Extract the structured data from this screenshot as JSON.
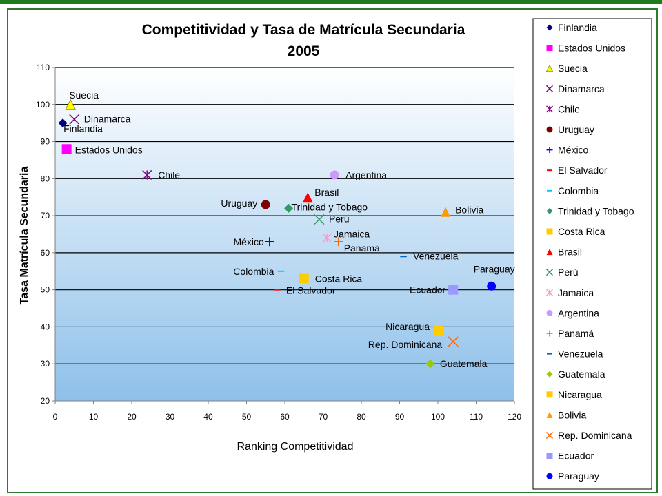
{
  "chart_data": {
    "type": "scatter",
    "title": [
      "Competitividad y Tasa de Matrícula Secundaria",
      "2005"
    ],
    "xlabel": "Ranking Competitividad",
    "ylabel": "Tasa Matrícula Secundaria",
    "xlim": [
      0,
      120
    ],
    "ylim": [
      20,
      110
    ],
    "xticks": [
      0,
      10,
      20,
      30,
      40,
      50,
      60,
      70,
      80,
      90,
      100,
      110,
      120
    ],
    "yticks": [
      20,
      30,
      40,
      50,
      60,
      70,
      80,
      90,
      100,
      110
    ],
    "grid": "horizontal",
    "legend_position": "right",
    "series": [
      {
        "name": "Finlandia",
        "x": 2,
        "y": 95,
        "marker": "diamond",
        "color": "#000080",
        "label": "Finlandia"
      },
      {
        "name": "Estados Unidos",
        "x": 3,
        "y": 88,
        "marker": "square",
        "color": "#ff00ff",
        "label": "Estados Unidos"
      },
      {
        "name": "Suecia",
        "x": 4,
        "y": 100,
        "marker": "triangle",
        "color": "#ffff00",
        "label": "Suecia"
      },
      {
        "name": "Dinamarca",
        "x": 5,
        "y": 96,
        "marker": "x",
        "color": "#800080",
        "label": "Dinamarca"
      },
      {
        "name": "Chile",
        "x": 24,
        "y": 81,
        "marker": "star",
        "color": "#800080",
        "label": "Chile"
      },
      {
        "name": "Uruguay",
        "x": 55,
        "y": 73,
        "marker": "circle",
        "color": "#800000",
        "label": "Uruguay"
      },
      {
        "name": "México",
        "x": 56,
        "y": 63,
        "marker": "plus",
        "color": "#0000ff",
        "label": "México"
      },
      {
        "name": "El Salvador",
        "x": 58,
        "y": 50,
        "marker": "dash",
        "color": "#ff0000",
        "label": "El Salvador"
      },
      {
        "name": "Colombia",
        "x": 59,
        "y": 55,
        "marker": "dash",
        "color": "#00ccff",
        "label": "Colombia"
      },
      {
        "name": "Trinidad y Tobago",
        "x": 61,
        "y": 72,
        "marker": "diamond",
        "color": "#339966",
        "label": "Trinidad y Tobago"
      },
      {
        "name": "Costa Rica",
        "x": 65,
        "y": 53,
        "marker": "square",
        "color": "#ffcc00",
        "label": "Costa Rica"
      },
      {
        "name": "Brasil",
        "x": 66,
        "y": 75,
        "marker": "triangle",
        "color": "#ff0000",
        "label": "Brasil"
      },
      {
        "name": "Perú",
        "x": 69,
        "y": 69,
        "marker": "x",
        "color": "#339966",
        "label": "Perú"
      },
      {
        "name": "Jamaica",
        "x": 71,
        "y": 64,
        "marker": "star",
        "color": "#ff99cc",
        "label": "Jamaica"
      },
      {
        "name": "Argentina",
        "x": 73,
        "y": 81,
        "marker": "circle",
        "color": "#cc99ff",
        "label": "Argentina"
      },
      {
        "name": "Panamá",
        "x": 74,
        "y": 63,
        "marker": "plus",
        "color": "#ff6600",
        "label": "Panamá"
      },
      {
        "name": "Venezuela",
        "x": 91,
        "y": 59,
        "marker": "dash",
        "color": "#0066cc",
        "label": "Venezuela"
      },
      {
        "name": "Guatemala",
        "x": 98,
        "y": 30,
        "marker": "diamond",
        "color": "#99cc00",
        "label": "Guatemala"
      },
      {
        "name": "Nicaragua",
        "x": 100,
        "y": 39,
        "marker": "square",
        "color": "#ffcc00",
        "label": "Nicaragua"
      },
      {
        "name": "Bolivia",
        "x": 102,
        "y": 71,
        "marker": "triangle",
        "color": "#ff9900",
        "label": "Bolivia"
      },
      {
        "name": "Rep. Dominicana",
        "x": 104,
        "y": 36,
        "marker": "x",
        "color": "#ff6600",
        "label": "Rep. Dominicana"
      },
      {
        "name": "Ecuador",
        "x": 104,
        "y": 50,
        "marker": "square",
        "color": "#9999ff",
        "label": "Ecuador"
      },
      {
        "name": "Paraguay",
        "x": 114,
        "y": 51,
        "marker": "circle",
        "color": "#0000ff",
        "label": "Paraguay"
      }
    ]
  }
}
